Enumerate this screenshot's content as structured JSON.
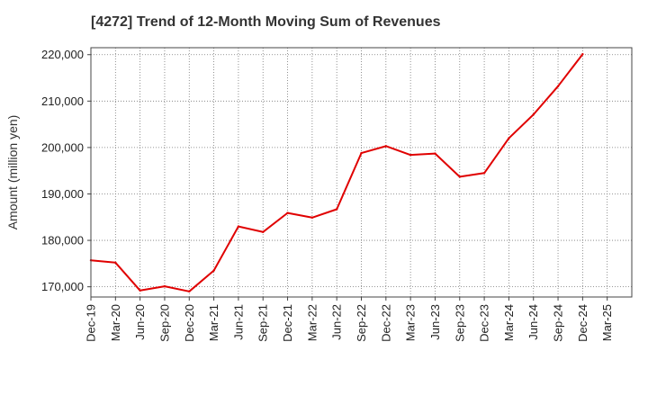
{
  "chart_data": {
    "type": "line",
    "title": "[4272]  Trend of 12-Month Moving Sum of Revenues",
    "xlabel": "",
    "ylabel": "Amount (million yen)",
    "ylim": [
      167800,
      221500
    ],
    "yticks": [
      170000,
      180000,
      190000,
      200000,
      210000,
      220000
    ],
    "ytick_labels": [
      "170,000",
      "180,000",
      "190,000",
      "200,000",
      "210,000",
      "220,000"
    ],
    "categories": [
      "Dec-19",
      "Mar-20",
      "Jun-20",
      "Sep-20",
      "Dec-20",
      "Mar-21",
      "Jun-21",
      "Sep-21",
      "Dec-21",
      "Mar-22",
      "Jun-22",
      "Sep-22",
      "Dec-22",
      "Mar-23",
      "Jun-23",
      "Sep-23",
      "Dec-23",
      "Mar-24",
      "Jun-24",
      "Sep-24",
      "Dec-24",
      "Mar-25"
    ],
    "series": [
      {
        "color": "#e00000",
        "values": [
          175700,
          175200,
          169200,
          170100,
          169000,
          173500,
          183000,
          181800,
          185900,
          184900,
          186700,
          198800,
          200300,
          198400,
          198700,
          193700,
          194500,
          202000,
          207100,
          213200,
          220100,
          null
        ]
      }
    ],
    "grid": true,
    "grid_style": "dotted"
  }
}
